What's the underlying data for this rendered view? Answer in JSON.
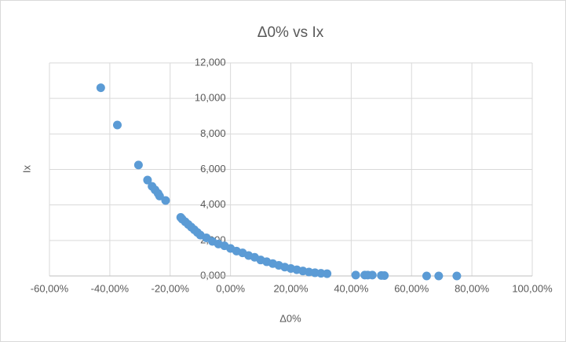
{
  "chart_data": {
    "type": "scatter",
    "title": "Δ0% vs Ix",
    "x_label": "Δ0%",
    "y_label": "Ix",
    "color": "#5b9bd5",
    "grid": true,
    "x": [
      -43,
      -37.5,
      -30.5,
      -27.5,
      -26,
      -25,
      -24,
      -23.5,
      -21.5,
      -16.5,
      -16,
      -15,
      -14,
      -13,
      -12,
      -11,
      -10,
      -8,
      -6,
      -4,
      -2,
      0,
      2,
      4,
      6,
      8,
      10,
      12,
      14,
      16,
      18,
      20,
      22,
      24,
      26,
      28,
      30,
      32,
      41.5,
      44.5,
      45.5,
      47,
      50,
      51,
      65,
      69,
      75
    ],
    "values": [
      10.6,
      8.5,
      6.25,
      5.4,
      5.05,
      4.85,
      4.65,
      4.5,
      4.25,
      3.3,
      3.2,
      3.05,
      2.9,
      2.75,
      2.6,
      2.45,
      2.3,
      2.15,
      1.95,
      1.8,
      1.7,
      1.55,
      1.4,
      1.3,
      1.15,
      1.05,
      0.9,
      0.8,
      0.7,
      0.6,
      0.5,
      0.42,
      0.35,
      0.28,
      0.22,
      0.18,
      0.15,
      0.13,
      0.05,
      0.05,
      0.05,
      0.05,
      0.03,
      0.02,
      0,
      0,
      0
    ],
    "xlim": [
      -60,
      100
    ],
    "xticks": [
      {
        "value": -60,
        "label": "-60,00%"
      },
      {
        "value": -40,
        "label": "-40,00%"
      },
      {
        "value": -20,
        "label": "-20,00%"
      },
      {
        "value": 0,
        "label": "0,00%"
      },
      {
        "value": 20,
        "label": "20,00%"
      },
      {
        "value": 40,
        "label": "40,00%"
      },
      {
        "value": 60,
        "label": "60,00%"
      },
      {
        "value": 80,
        "label": "80,00%"
      },
      {
        "value": 100,
        "label": "100,00%"
      }
    ],
    "ylim": [
      0,
      12
    ],
    "yticks": [
      {
        "value": 0,
        "label": "0,000"
      },
      {
        "value": 2,
        "label": "2,000"
      },
      {
        "value": 4,
        "label": "4,000"
      },
      {
        "value": 6,
        "label": "6,000"
      },
      {
        "value": 8,
        "label": "8,000"
      },
      {
        "value": 10,
        "label": "10,000"
      },
      {
        "value": 12,
        "label": "12,000"
      }
    ]
  }
}
